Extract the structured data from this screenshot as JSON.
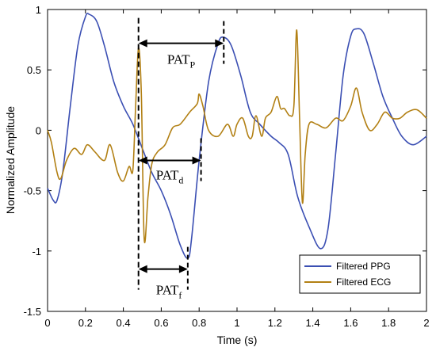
{
  "chart_data": {
    "type": "line",
    "xlabel": "Time (s)",
    "ylabel": "Normalized Amplitude",
    "xlim": [
      0,
      2
    ],
    "ylim": [
      -1.5,
      1
    ],
    "x_ticks": [
      "0",
      "0.2",
      "0.4",
      "0.6",
      "0.8",
      "1",
      "1.2",
      "1.4",
      "1.6",
      "1.8",
      "2"
    ],
    "y_ticks": [
      "1",
      "0.5",
      "0",
      "-0.5",
      "-1",
      "-1.5"
    ],
    "grid": false,
    "legend_position": "bottom-right",
    "series": [
      {
        "name": "Filtered PPG",
        "color": "#3b4fb3",
        "points": [
          [
            0,
            -0.48
          ],
          [
            0.03,
            -0.58
          ],
          [
            0.05,
            -0.58
          ],
          [
            0.08,
            -0.35
          ],
          [
            0.12,
            0.2
          ],
          [
            0.16,
            0.7
          ],
          [
            0.2,
            0.94
          ],
          [
            0.22,
            0.96
          ],
          [
            0.26,
            0.9
          ],
          [
            0.3,
            0.7
          ],
          [
            0.35,
            0.4
          ],
          [
            0.4,
            0.2
          ],
          [
            0.45,
            0.05
          ],
          [
            0.5,
            -0.15
          ],
          [
            0.55,
            -0.35
          ],
          [
            0.6,
            -0.5
          ],
          [
            0.65,
            -0.7
          ],
          [
            0.7,
            -0.95
          ],
          [
            0.74,
            -1.06
          ],
          [
            0.76,
            -0.9
          ],
          [
            0.8,
            -0.25
          ],
          [
            0.85,
            0.4
          ],
          [
            0.9,
            0.72
          ],
          [
            0.93,
            0.77
          ],
          [
            0.97,
            0.7
          ],
          [
            1.02,
            0.45
          ],
          [
            1.07,
            0.15
          ],
          [
            1.12,
            0.05
          ],
          [
            1.18,
            -0.05
          ],
          [
            1.22,
            -0.1
          ],
          [
            1.27,
            -0.2
          ],
          [
            1.32,
            -0.55
          ],
          [
            1.38,
            -0.8
          ],
          [
            1.44,
            -0.98
          ],
          [
            1.48,
            -0.82
          ],
          [
            1.52,
            -0.2
          ],
          [
            1.56,
            0.45
          ],
          [
            1.6,
            0.78
          ],
          [
            1.63,
            0.84
          ],
          [
            1.67,
            0.8
          ],
          [
            1.72,
            0.55
          ],
          [
            1.77,
            0.28
          ],
          [
            1.82,
            0.1
          ],
          [
            1.87,
            -0.05
          ],
          [
            1.93,
            -0.12
          ],
          [
            2.0,
            -0.05
          ]
        ]
      },
      {
        "name": "Filtered ECG",
        "color": "#b28014",
        "points": [
          [
            0,
            0
          ],
          [
            0.02,
            -0.1
          ],
          [
            0.05,
            -0.35
          ],
          [
            0.07,
            -0.4
          ],
          [
            0.1,
            -0.25
          ],
          [
            0.14,
            -0.15
          ],
          [
            0.18,
            -0.2
          ],
          [
            0.21,
            -0.12
          ],
          [
            0.25,
            -0.18
          ],
          [
            0.3,
            -0.25
          ],
          [
            0.33,
            -0.12
          ],
          [
            0.37,
            -0.35
          ],
          [
            0.4,
            -0.42
          ],
          [
            0.43,
            -0.3
          ],
          [
            0.45,
            -0.33
          ],
          [
            0.465,
            0.2
          ],
          [
            0.48,
            0.68
          ],
          [
            0.495,
            0.3
          ],
          [
            0.51,
            -0.9
          ],
          [
            0.53,
            -0.55
          ],
          [
            0.55,
            -0.28
          ],
          [
            0.58,
            -0.18
          ],
          [
            0.62,
            -0.12
          ],
          [
            0.66,
            0.02
          ],
          [
            0.7,
            0.05
          ],
          [
            0.75,
            0.15
          ],
          [
            0.79,
            0.22
          ],
          [
            0.8,
            0.3
          ],
          [
            0.82,
            0.2
          ],
          [
            0.85,
            0.0
          ],
          [
            0.9,
            -0.05
          ],
          [
            0.95,
            0.05
          ],
          [
            0.98,
            -0.05
          ],
          [
            1.0,
            0.05
          ],
          [
            1.03,
            0.1
          ],
          [
            1.06,
            -0.05
          ],
          [
            1.08,
            -0.05
          ],
          [
            1.1,
            0.12
          ],
          [
            1.13,
            -0.05
          ],
          [
            1.15,
            0.1
          ],
          [
            1.18,
            0.15
          ],
          [
            1.21,
            0.28
          ],
          [
            1.23,
            0.18
          ],
          [
            1.25,
            0.18
          ],
          [
            1.28,
            0.12
          ],
          [
            1.3,
            0.2
          ],
          [
            1.315,
            0.83
          ],
          [
            1.33,
            0.1
          ],
          [
            1.345,
            -0.6
          ],
          [
            1.36,
            -0.2
          ],
          [
            1.38,
            0.05
          ],
          [
            1.42,
            0.05
          ],
          [
            1.47,
            0.02
          ],
          [
            1.52,
            0.1
          ],
          [
            1.56,
            0.08
          ],
          [
            1.6,
            0.2
          ],
          [
            1.63,
            0.35
          ],
          [
            1.66,
            0.15
          ],
          [
            1.7,
            0.0
          ],
          [
            1.74,
            0.05
          ],
          [
            1.78,
            0.15
          ],
          [
            1.82,
            0.1
          ],
          [
            1.86,
            0.1
          ],
          [
            1.9,
            0.15
          ],
          [
            1.95,
            0.17
          ],
          [
            2.0,
            0.1
          ]
        ]
      }
    ],
    "annotations": [
      {
        "label": "PAT",
        "subscript": "P",
        "from_x": 0.48,
        "to_x": 0.93,
        "y": 0.72,
        "marker_x": [
          0.48,
          0.93
        ]
      },
      {
        "label": "PAT",
        "subscript": "d",
        "from_x": 0.48,
        "to_x": 0.81,
        "y": -0.25,
        "marker_x": [
          0.81
        ]
      },
      {
        "label": "PAT",
        "subscript": "f",
        "from_x": 0.48,
        "to_x": 0.74,
        "y": -1.15,
        "marker_x": [
          0.74
        ]
      }
    ]
  }
}
